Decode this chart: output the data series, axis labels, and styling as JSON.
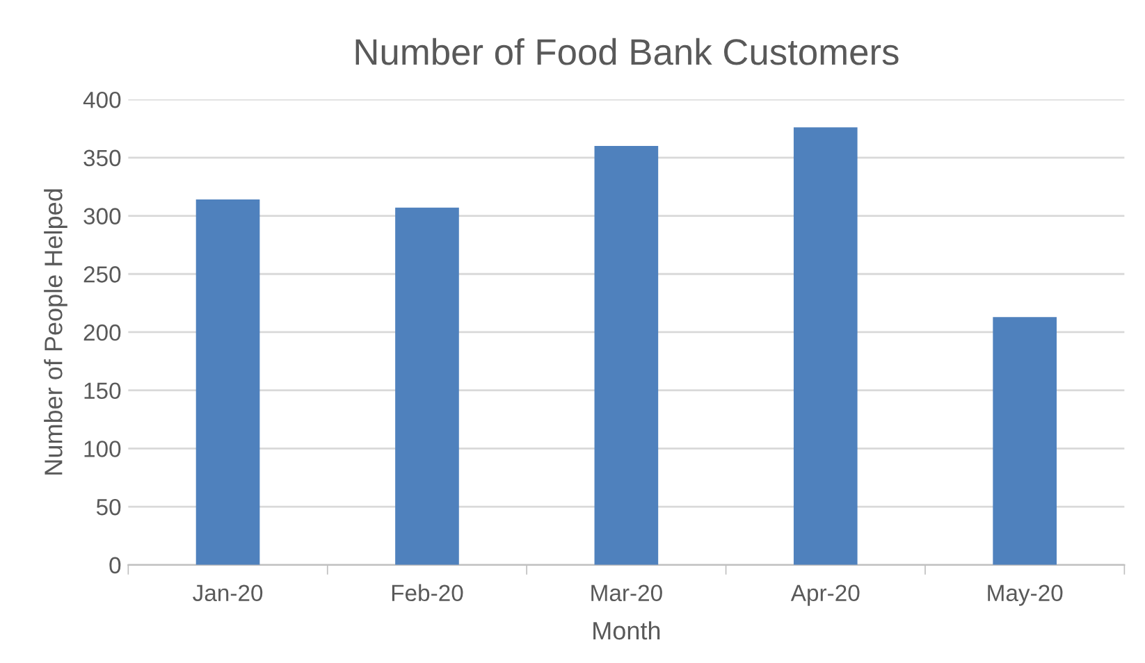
{
  "chart_data": {
    "type": "bar",
    "title": "Number of Food Bank Customers",
    "xlabel": "Month",
    "ylabel": "Number of People Helped",
    "categories": [
      "Jan-20",
      "Feb-20",
      "Mar-20",
      "Apr-20",
      "May-20"
    ],
    "values": [
      314,
      307,
      360,
      376,
      213
    ],
    "color": "#4f81bd",
    "ylim": [
      0,
      400
    ],
    "yticks": [
      0,
      50,
      100,
      150,
      200,
      250,
      300,
      350,
      400
    ],
    "grid": "y"
  }
}
